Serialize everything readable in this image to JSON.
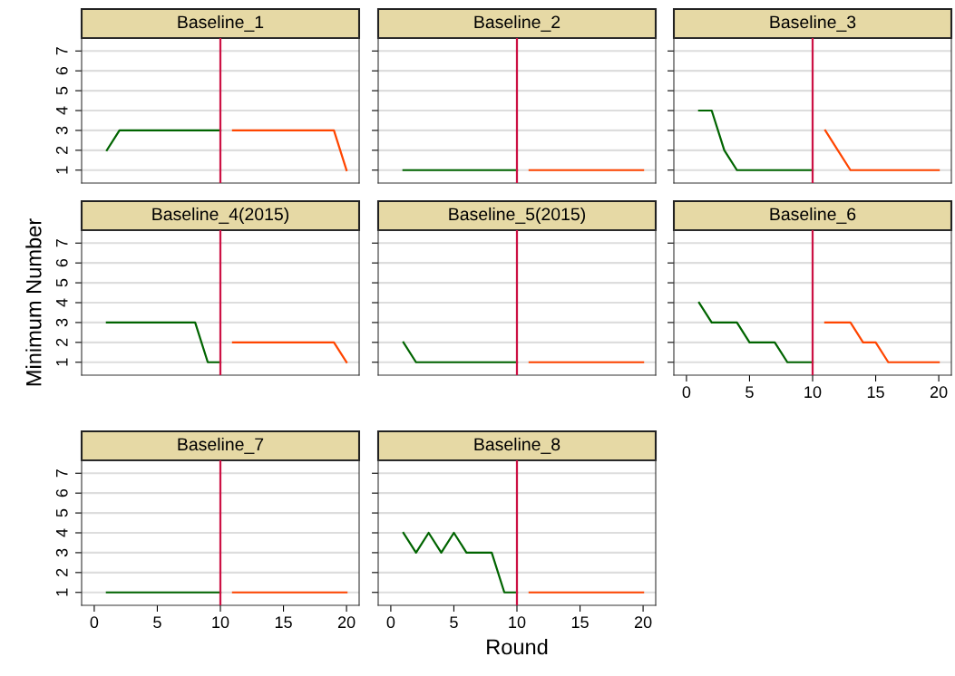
{
  "chart_data": [
    {
      "type": "line",
      "title": "Baseline_1",
      "xlim": [
        -1,
        21
      ],
      "ylim": [
        0.35,
        7.65
      ],
      "xticks": [
        0,
        5,
        10,
        15,
        20
      ],
      "yticks": [
        1,
        2,
        3,
        4,
        5,
        6,
        7
      ],
      "grid": "y",
      "tick_labels": "y",
      "ref_lines": [
        {
          "axis": "x",
          "value": 10,
          "color": "#cc1144"
        }
      ],
      "series": [
        {
          "color": "#006400",
          "x": [
            1,
            2,
            3,
            4,
            5,
            6,
            7,
            8,
            9,
            10
          ],
          "values": [
            2,
            3,
            3,
            3,
            3,
            3,
            3,
            3,
            3,
            3
          ]
        },
        {
          "color": "#ff4500",
          "x": [
            11,
            12,
            13,
            14,
            15,
            16,
            17,
            18,
            19,
            20
          ],
          "values": [
            3,
            3,
            3,
            3,
            3,
            3,
            3,
            3,
            3,
            1
          ]
        }
      ]
    },
    {
      "type": "line",
      "title": "Baseline_2",
      "xlim": [
        -1,
        21
      ],
      "ylim": [
        0.35,
        7.65
      ],
      "xticks": [
        0,
        5,
        10,
        15,
        20
      ],
      "yticks": [
        1,
        2,
        3,
        4,
        5,
        6,
        7
      ],
      "grid": "y",
      "tick_labels": false,
      "ref_lines": [
        {
          "axis": "x",
          "value": 10,
          "color": "#cc1144"
        }
      ],
      "series": [
        {
          "color": "#006400",
          "x": [
            1,
            2,
            3,
            4,
            5,
            6,
            7,
            8,
            9,
            10
          ],
          "values": [
            1,
            1,
            1,
            1,
            1,
            1,
            1,
            1,
            1,
            1
          ]
        },
        {
          "color": "#ff4500",
          "x": [
            11,
            12,
            13,
            14,
            15,
            16,
            17,
            18,
            19,
            20
          ],
          "values": [
            1,
            1,
            1,
            1,
            1,
            1,
            1,
            1,
            1,
            1
          ]
        }
      ]
    },
    {
      "type": "line",
      "title": "Baseline_3",
      "xlim": [
        -1,
        21
      ],
      "ylim": [
        0.35,
        7.65
      ],
      "xticks": [
        0,
        5,
        10,
        15,
        20
      ],
      "yticks": [
        1,
        2,
        3,
        4,
        5,
        6,
        7
      ],
      "grid": "y",
      "tick_labels": false,
      "ref_lines": [
        {
          "axis": "x",
          "value": 10,
          "color": "#cc1144"
        }
      ],
      "series": [
        {
          "color": "#006400",
          "x": [
            1,
            2,
            3,
            4,
            5,
            6,
            7,
            8,
            9,
            10
          ],
          "values": [
            4,
            4,
            2,
            1,
            1,
            1,
            1,
            1,
            1,
            1
          ]
        },
        {
          "color": "#ff4500",
          "x": [
            11,
            12,
            13,
            14,
            15,
            16,
            17,
            18,
            19,
            20
          ],
          "values": [
            3,
            2,
            1,
            1,
            1,
            1,
            1,
            1,
            1,
            1
          ]
        }
      ]
    },
    {
      "type": "line",
      "title": "Baseline_4(2015)",
      "ylabel": "Minimum Number",
      "xlim": [
        -1,
        21
      ],
      "ylim": [
        0.35,
        7.65
      ],
      "xticks": [
        0,
        5,
        10,
        15,
        20
      ],
      "yticks": [
        1,
        2,
        3,
        4,
        5,
        6,
        7
      ],
      "grid": "y",
      "tick_labels": "y",
      "ref_lines": [
        {
          "axis": "x",
          "value": 10,
          "color": "#cc1144"
        }
      ],
      "series": [
        {
          "color": "#006400",
          "x": [
            1,
            2,
            3,
            4,
            5,
            6,
            7,
            8,
            9,
            10
          ],
          "values": [
            3,
            3,
            3,
            3,
            3,
            3,
            3,
            3,
            1,
            1
          ]
        },
        {
          "color": "#ff4500",
          "x": [
            11,
            12,
            13,
            14,
            15,
            16,
            17,
            18,
            19,
            20
          ],
          "values": [
            2,
            2,
            2,
            2,
            2,
            2,
            2,
            2,
            2,
            1
          ]
        }
      ]
    },
    {
      "type": "line",
      "title": "Baseline_5(2015)",
      "xlim": [
        -1,
        21
      ],
      "ylim": [
        0.35,
        7.65
      ],
      "xticks": [
        0,
        5,
        10,
        15,
        20
      ],
      "yticks": [
        1,
        2,
        3,
        4,
        5,
        6,
        7
      ],
      "grid": "y",
      "tick_labels": false,
      "ref_lines": [
        {
          "axis": "x",
          "value": 10,
          "color": "#cc1144"
        }
      ],
      "series": [
        {
          "color": "#006400",
          "x": [
            1,
            2,
            3,
            4,
            5,
            6,
            7,
            8,
            9,
            10
          ],
          "values": [
            2,
            1,
            1,
            1,
            1,
            1,
            1,
            1,
            1,
            1
          ]
        },
        {
          "color": "#ff4500",
          "x": [
            11,
            12,
            13,
            14,
            15,
            16,
            17,
            18,
            19,
            20
          ],
          "values": [
            1,
            1,
            1,
            1,
            1,
            1,
            1,
            1,
            1,
            1
          ]
        }
      ]
    },
    {
      "type": "line",
      "title": "Baseline_6",
      "xlim": [
        -1,
        21
      ],
      "ylim": [
        0.35,
        7.65
      ],
      "xticks": [
        0,
        5,
        10,
        15,
        20
      ],
      "yticks": [
        1,
        2,
        3,
        4,
        5,
        6,
        7
      ],
      "grid": "y",
      "tick_labels": "x",
      "ref_lines": [
        {
          "axis": "x",
          "value": 10,
          "color": "#cc1144"
        }
      ],
      "series": [
        {
          "color": "#006400",
          "x": [
            1,
            2,
            3,
            4,
            5,
            6,
            7,
            8,
            9,
            10
          ],
          "values": [
            4,
            3,
            3,
            3,
            2,
            2,
            2,
            1,
            1,
            1
          ]
        },
        {
          "color": "#ff4500",
          "x": [
            11,
            12,
            13,
            14,
            15,
            16,
            17,
            18,
            19,
            20
          ],
          "values": [
            3,
            3,
            3,
            2,
            2,
            1,
            1,
            1,
            1,
            1
          ]
        }
      ]
    },
    {
      "type": "line",
      "title": "Baseline_7",
      "xlim": [
        -1,
        21
      ],
      "ylim": [
        0.35,
        7.65
      ],
      "xticks": [
        0,
        5,
        10,
        15,
        20
      ],
      "yticks": [
        1,
        2,
        3,
        4,
        5,
        6,
        7
      ],
      "grid": "y",
      "ref_lines": [
        {
          "axis": "x",
          "value": 10,
          "color": "#cc1144"
        }
      ],
      "series": [
        {
          "color": "#006400",
          "x": [
            1,
            2,
            3,
            4,
            5,
            6,
            7,
            8,
            9,
            10
          ],
          "values": [
            1,
            1,
            1,
            1,
            1,
            1,
            1,
            1,
            1,
            1
          ]
        },
        {
          "color": "#ff4500",
          "x": [
            11,
            12,
            13,
            14,
            15,
            16,
            17,
            18,
            19,
            20
          ],
          "values": [
            1,
            1,
            1,
            1,
            1,
            1,
            1,
            1,
            1,
            1
          ]
        }
      ]
    },
    {
      "type": "line",
      "title": "Baseline_8",
      "xlabel": "Round",
      "xlim": [
        -1,
        21
      ],
      "ylim": [
        0.35,
        7.65
      ],
      "xticks": [
        0,
        5,
        10,
        15,
        20
      ],
      "yticks": [
        1,
        2,
        3,
        4,
        5,
        6,
        7
      ],
      "grid": "y",
      "tick_labels": "x",
      "ref_lines": [
        {
          "axis": "x",
          "value": 10,
          "color": "#cc1144"
        }
      ],
      "series": [
        {
          "color": "#006400",
          "x": [
            1,
            2,
            3,
            4,
            5,
            6,
            7,
            8,
            9,
            10
          ],
          "values": [
            4,
            3,
            4,
            3,
            4,
            3,
            3,
            3,
            1,
            1
          ]
        },
        {
          "color": "#ff4500",
          "x": [
            11,
            12,
            13,
            14,
            15,
            16,
            17,
            18,
            19,
            20
          ],
          "values": [
            1,
            1,
            1,
            1,
            1,
            1,
            1,
            1,
            1,
            1
          ]
        }
      ]
    }
  ]
}
